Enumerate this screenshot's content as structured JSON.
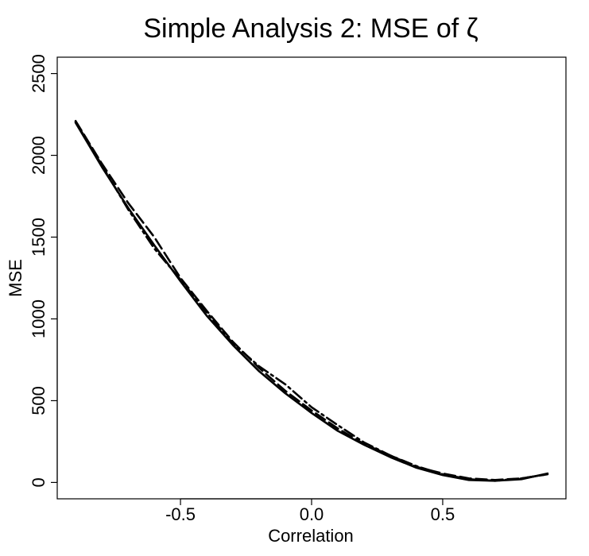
{
  "chart_data": {
    "type": "line",
    "title": "Simple Analysis 2: MSE of ζ",
    "xlabel": "Correlation",
    "ylabel": "MSE",
    "xlim": [
      -0.97,
      0.97
    ],
    "ylim": [
      -100,
      2600
    ],
    "x_ticks": [
      -0.5,
      0.0,
      0.5
    ],
    "x_tick_labels": [
      "-0.5",
      "0.0",
      "0.5"
    ],
    "y_ticks": [
      0,
      500,
      1000,
      1500,
      2000,
      2500
    ],
    "y_tick_labels": [
      "0",
      "500",
      "1000",
      "1500",
      "2000",
      "2500"
    ],
    "grid": false,
    "legend": "none",
    "series": [
      {
        "style": "solid",
        "color": "#000000",
        "x": [
          -0.9,
          -0.8,
          -0.7,
          -0.6,
          -0.5,
          -0.4,
          -0.3,
          -0.2,
          -0.1,
          0.0,
          0.1,
          0.2,
          0.3,
          0.4,
          0.5,
          0.6,
          0.7,
          0.8,
          0.9
        ],
        "y": [
          2200,
          1930,
          1680,
          1450,
          1230,
          1020,
          840,
          680,
          545,
          425,
          315,
          230,
          155,
          90,
          45,
          15,
          10,
          20,
          55
        ]
      },
      {
        "style": "dashed",
        "color": "#000000",
        "x": [
          -0.9,
          -0.8,
          -0.7,
          -0.6,
          -0.5,
          -0.4,
          -0.3,
          -0.2,
          -0.1,
          0.0,
          0.1,
          0.2,
          0.3,
          0.4,
          0.5,
          0.6,
          0.7,
          0.8,
          0.9
        ],
        "y": [
          2210,
          1950,
          1710,
          1500,
          1250,
          1050,
          860,
          700,
          560,
          440,
          330,
          235,
          165,
          95,
          55,
          25,
          15,
          25,
          50
        ]
      },
      {
        "style": "dotdash",
        "color": "#000000",
        "x": [
          -0.9,
          -0.8,
          -0.7,
          -0.6,
          -0.5,
          -0.4,
          -0.3,
          -0.2,
          -0.1,
          0.0,
          0.1,
          0.2,
          0.3,
          0.4,
          0.5,
          0.6,
          0.7,
          0.8,
          0.9
        ],
        "y": [
          2205,
          1940,
          1670,
          1430,
          1240,
          1040,
          850,
          710,
          600,
          460,
          350,
          245,
          165,
          100,
          50,
          20,
          10,
          25,
          50
        ]
      }
    ]
  }
}
